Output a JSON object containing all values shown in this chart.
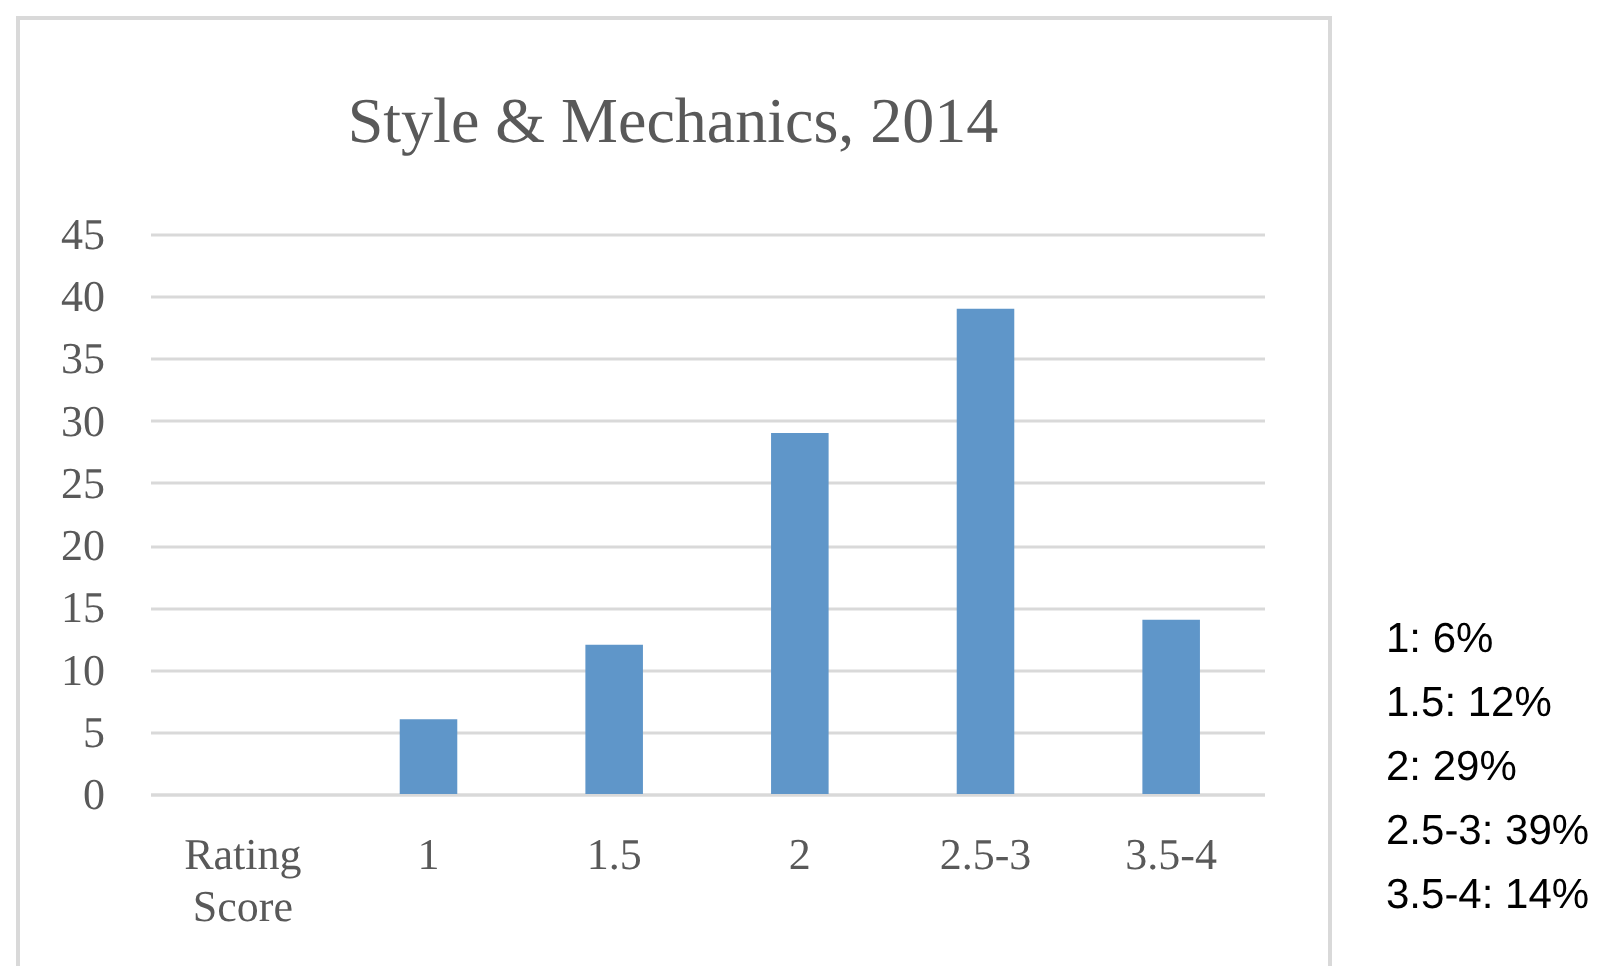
{
  "chart_data": {
    "type": "bar",
    "title": "Style & Mechanics, 2014",
    "categories": [
      "Rating Score",
      "1",
      "1.5",
      "2",
      "2.5-3",
      "3.5-4"
    ],
    "values": [
      null,
      6,
      12,
      29,
      39,
      14
    ],
    "color": "#5f96c9",
    "ylim": [
      0,
      45
    ],
    "yticks": [
      0,
      5,
      10,
      15,
      20,
      25,
      30,
      35,
      40,
      45
    ],
    "grid": "y",
    "annotations": [
      "1: 6%",
      "1.5: 12%",
      "2: 29%",
      "2.5-3: 39%",
      "3.5-4: 14%"
    ]
  }
}
